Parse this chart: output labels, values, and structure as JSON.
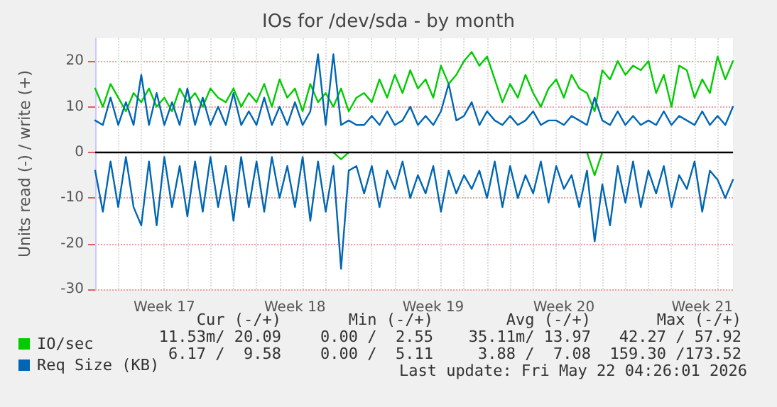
{
  "chart_data": {
    "type": "line",
    "title": "IOs for /dev/sda - by month",
    "ylabel": "Units read (-) / write (+)",
    "categories": [
      null,
      null,
      null,
      null,
      null,
      null,
      null,
      null,
      null,
      "Week 17",
      null,
      null,
      null,
      null,
      null,
      null,
      null,
      null,
      null,
      null,
      null,
      null,
      null,
      null,
      null,
      null,
      "Week 18",
      null,
      null,
      null,
      null,
      null,
      null,
      null,
      null,
      null,
      null,
      null,
      null,
      null,
      null,
      null,
      null,
      null,
      "Week 19",
      null,
      null,
      null,
      null,
      null,
      null,
      null,
      null,
      null,
      null,
      null,
      null,
      null,
      null,
      null,
      null,
      "Week 20",
      null,
      null,
      null,
      null,
      null,
      null,
      null,
      null,
      null,
      null,
      null,
      null,
      null,
      null,
      null,
      null,
      null,
      "Week 21",
      null,
      null,
      null,
      null
    ],
    "series": [
      {
        "color": "#00cc00",
        "values": [
          null,
          null,
          null,
          null,
          null,
          null,
          null,
          null,
          null,
          null,
          null,
          null,
          null,
          null,
          null,
          null,
          null,
          null,
          null,
          null,
          null,
          null,
          null,
          null,
          null,
          null,
          null,
          null,
          null,
          null,
          null,
          0,
          -1.5,
          0,
          null,
          null,
          null,
          null,
          null,
          null,
          null,
          null,
          null,
          null,
          null,
          null,
          null,
          null,
          null,
          null,
          null,
          null,
          null,
          null,
          null,
          null,
          null,
          null,
          null,
          null,
          null,
          null,
          null,
          null,
          0,
          -5,
          0,
          null,
          null,
          null,
          null,
          null,
          null,
          null,
          null,
          null,
          null,
          null,
          null,
          null,
          null,
          null,
          null,
          null
        ]
      },
      {
        "name": "IO/sec",
        "color": "#00cc00",
        "values": [
          14,
          10,
          15,
          12,
          9,
          13,
          11,
          14,
          10,
          12,
          9,
          14,
          11,
          13,
          10,
          14,
          12,
          11,
          14,
          10,
          13,
          11,
          15,
          10,
          16,
          12,
          14,
          9,
          15,
          11,
          13,
          10,
          14,
          9,
          12,
          13,
          11,
          16,
          12,
          17,
          13,
          18,
          14,
          16,
          12,
          19,
          15,
          17,
          20,
          22,
          19,
          21,
          16,
          11,
          15,
          12,
          17,
          13,
          10,
          14,
          16,
          12,
          17,
          14,
          13,
          9,
          18,
          16,
          20,
          17,
          19,
          18,
          20,
          13,
          17,
          10,
          19,
          18,
          12,
          16,
          13,
          21,
          16,
          20
        ]
      },
      {
        "color": "#0066b3",
        "values": [
          -4,
          -13,
          -2,
          -12,
          -1,
          -12,
          -16,
          -2,
          -16,
          -1,
          -12,
          -3,
          -14,
          -2,
          -13,
          -1,
          -12,
          -3,
          -15,
          -1,
          -12,
          -2,
          -13,
          -1,
          -10,
          -3,
          -12,
          -1,
          -15,
          -2,
          -13,
          -3,
          -25.5,
          -4,
          -3,
          -9,
          -3,
          -12,
          -4,
          -8,
          -2,
          -10,
          -5,
          -9,
          -3,
          -13,
          -4,
          -9,
          -5,
          -8,
          -4,
          -10,
          -2,
          -12,
          -3,
          -10,
          -5,
          -9,
          -2,
          -11,
          -3,
          -8,
          -5,
          -12,
          -4,
          -19.5,
          -7,
          -16,
          -3,
          -11,
          -2,
          -12,
          -4,
          -9,
          -3,
          -12,
          -5,
          -8,
          -2,
          -13,
          -4,
          -6,
          -10,
          -6
        ]
      },
      {
        "name": "Req Size (KB)",
        "color": "#0066b3",
        "values": [
          7,
          6,
          12,
          6,
          11,
          6,
          17,
          6,
          13,
          6,
          11,
          6,
          14,
          6,
          12,
          6,
          10,
          6,
          13,
          6,
          9,
          6,
          12,
          6,
          10,
          6,
          11,
          6,
          9,
          21.5,
          6,
          21.5,
          6,
          7,
          6,
          6,
          8,
          6,
          9,
          6,
          7,
          10,
          6,
          8,
          6,
          9,
          15,
          7,
          8,
          11,
          6,
          9,
          7,
          6,
          8,
          6,
          7,
          9,
          6,
          7,
          7,
          6,
          8,
          7,
          6,
          12,
          7,
          6,
          9,
          6,
          8,
          6,
          7,
          6,
          9,
          6,
          8,
          7,
          6,
          9,
          6,
          8,
          6,
          10
        ]
      }
    ],
    "ylim": [
      -30,
      25
    ],
    "yticks": [
      -30,
      -20,
      -10,
      0,
      10,
      20
    ],
    "ref_lines": [
      {
        "axis": "y",
        "value": 0,
        "color": "#000000"
      }
    ],
    "grid": true,
    "legend": "bottom left",
    "line_style": "solid",
    "marker": "none",
    "annotations": [
      "Cur (-/+)",
      "Min (-/+)",
      "Avg (-/+)",
      "Max (-/+)",
      "11.53m/ 20.09",
      "0.00 /  2.55",
      "35.11m/ 13.97",
      "42.27 / 57.92",
      "6.17 /  9.58",
      "0.00 /  5.11",
      "3.88 /  7.08",
      "159.30 /173.52",
      "Last update: Fri May 22 04:26:01 2026"
    ]
  }
}
